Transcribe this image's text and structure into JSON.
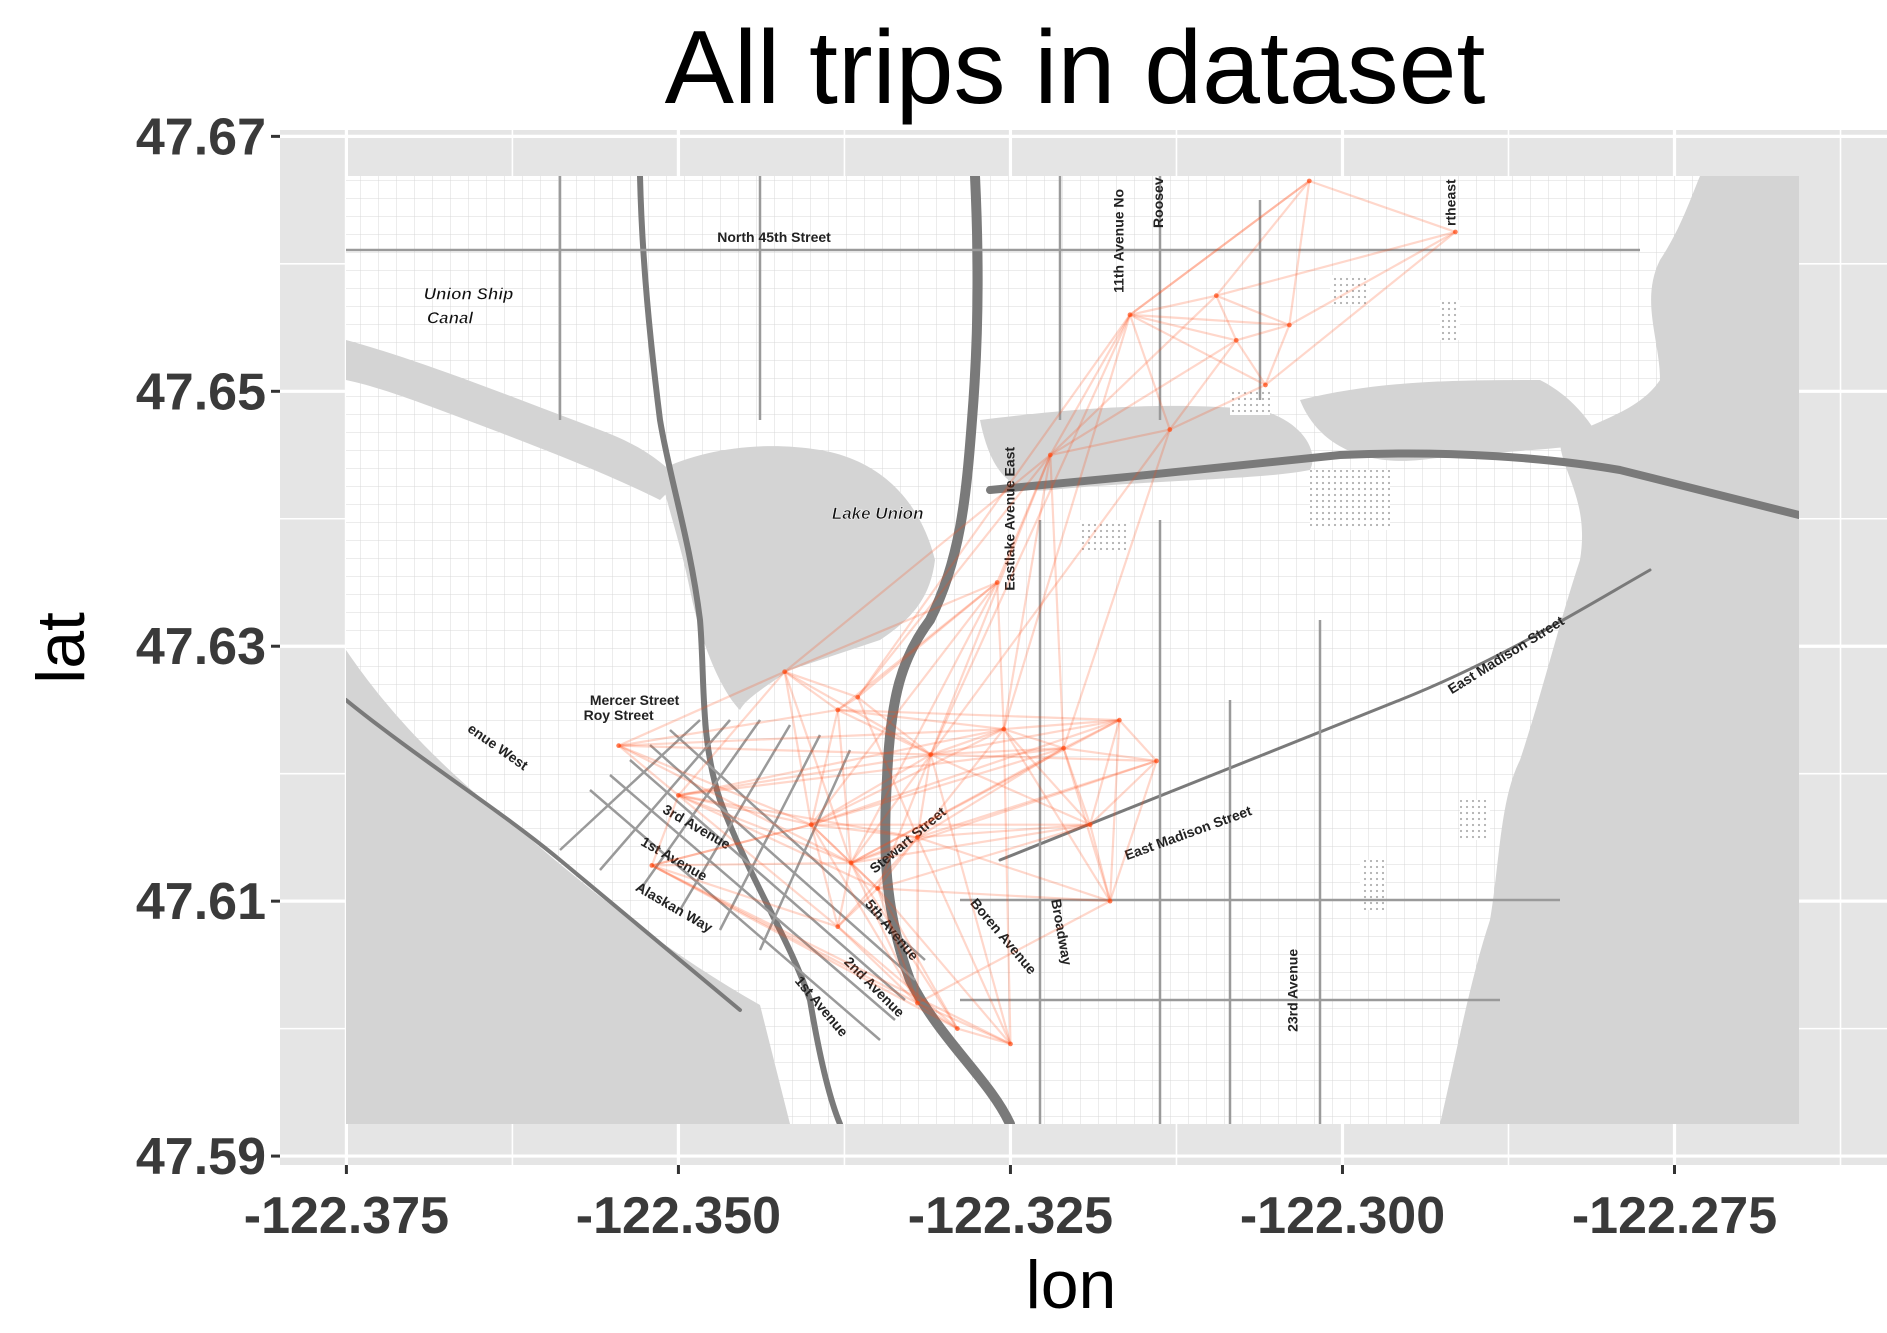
{
  "title": "All trips in dataset",
  "axes": {
    "x": {
      "label": "lon",
      "range": [
        -122.38,
        -122.259
      ],
      "ticks": [
        {
          "value": -122.375,
          "label": "-122.375"
        },
        {
          "value": -122.35,
          "label": "-122.350"
        },
        {
          "value": -122.325,
          "label": "-122.325"
        },
        {
          "value": -122.3,
          "label": "-122.300"
        },
        {
          "value": -122.275,
          "label": "-122.275"
        }
      ],
      "minor": [
        -122.3625,
        -122.3375,
        -122.3125,
        -122.2875,
        -122.2625
      ]
    },
    "y": {
      "label": "lat",
      "range": [
        47.5893,
        47.6705
      ],
      "ticks": [
        {
          "value": 47.59,
          "label": "47.59"
        },
        {
          "value": 47.61,
          "label": "47.61"
        },
        {
          "value": 47.63,
          "label": "47.63"
        },
        {
          "value": 47.65,
          "label": "47.65"
        },
        {
          "value": 47.67,
          "label": "47.67"
        }
      ],
      "minor": [
        47.6,
        47.62,
        47.64,
        47.66
      ]
    }
  },
  "panel_background": "#e5e5e5",
  "trip_color": "#ff4a12",
  "map": {
    "extent": {
      "lon": [
        -122.37,
        -122.26
      ],
      "lat": [
        47.5932,
        47.667
      ]
    },
    "water_color": "#d4d4d4",
    "land_color": "#ffffff",
    "street_labels": [
      {
        "text": "North 45th Street",
        "lon": -122.3428,
        "lat": 47.6617,
        "rotate": 0
      },
      {
        "text": "11th Avenue No",
        "lon": -122.3165,
        "lat": 47.6618,
        "rotate": -90
      },
      {
        "text": "Roosev",
        "lon": -122.3135,
        "lat": 47.6648,
        "rotate": -90
      },
      {
        "text": "rtheast",
        "lon": -122.2915,
        "lat": 47.6648,
        "rotate": -90
      },
      {
        "text": "Eastlake Avenue East",
        "lon": -122.3247,
        "lat": 47.64,
        "rotate": -90
      },
      {
        "text": "Mercer Street",
        "lon": -122.3533,
        "lat": 47.6254,
        "rotate": 0
      },
      {
        "text": "Roy Street",
        "lon": -122.3545,
        "lat": 47.6242,
        "rotate": 0
      },
      {
        "text": "enue West",
        "lon": -122.3638,
        "lat": 47.6218,
        "rotate": 35
      },
      {
        "text": "3rd Avenue",
        "lon": -122.3488,
        "lat": 47.6155,
        "rotate": 30
      },
      {
        "text": "1st Avenue",
        "lon": -122.3505,
        "lat": 47.613,
        "rotate": 30
      },
      {
        "text": "Alaskan Way",
        "lon": -122.3505,
        "lat": 47.6092,
        "rotate": 30
      },
      {
        "text": "Stewart Street",
        "lon": -122.3325,
        "lat": 47.6145,
        "rotate": -40
      },
      {
        "text": "5th Avenue",
        "lon": -122.3342,
        "lat": 47.6075,
        "rotate": 50
      },
      {
        "text": "2nd Avenue",
        "lon": -122.3355,
        "lat": 47.603,
        "rotate": 45
      },
      {
        "text": "1st Avenue",
        "lon": -122.3395,
        "lat": 47.6015,
        "rotate": 50
      },
      {
        "text": "Boren Avenue",
        "lon": -122.3258,
        "lat": 47.607,
        "rotate": 50
      },
      {
        "text": "Broadway",
        "lon": -122.3215,
        "lat": 47.6075,
        "rotate": 80
      },
      {
        "text": "East Madison Street",
        "lon": -122.3115,
        "lat": 47.615,
        "rotate": -20
      },
      {
        "text": "23rd Avenue",
        "lon": -122.3034,
        "lat": 47.603,
        "rotate": -90
      },
      {
        "text": "East Madison Street",
        "lon": -122.2875,
        "lat": 47.629,
        "rotate": -32
      }
    ],
    "place_labels": [
      {
        "text": "Union Ship",
        "lon": -122.3658,
        "lat": 47.6572
      },
      {
        "text": "Canal",
        "lon": -122.3672,
        "lat": 47.6553
      },
      {
        "text": "Lake Union",
        "lon": -122.335,
        "lat": 47.64
      }
    ]
  },
  "chart_data": {
    "type": "segments",
    "title": "All trips in dataset",
    "xlabel": "lon",
    "ylabel": "lat",
    "xlim": [
      -122.38,
      -122.259
    ],
    "ylim": [
      47.5893,
      47.6705
    ],
    "grid": true,
    "legend": "none",
    "stations": [
      {
        "id": "A",
        "lon": -122.3545,
        "lat": 47.6222
      },
      {
        "id": "B",
        "lon": -122.35,
        "lat": 47.6183
      },
      {
        "id": "C",
        "lon": -122.342,
        "lat": 47.628
      },
      {
        "id": "D",
        "lon": -122.338,
        "lat": 47.625
      },
      {
        "id": "E",
        "lon": -122.3365,
        "lat": 47.626
      },
      {
        "id": "F",
        "lon": -122.331,
        "lat": 47.6215
      },
      {
        "id": "G",
        "lon": -122.326,
        "lat": 47.635
      },
      {
        "id": "H",
        "lon": -122.3255,
        "lat": 47.6235
      },
      {
        "id": "I",
        "lon": -122.321,
        "lat": 47.622
      },
      {
        "id": "J",
        "lon": -122.3168,
        "lat": 47.6242
      },
      {
        "id": "K",
        "lon": -122.314,
        "lat": 47.621
      },
      {
        "id": "L",
        "lon": -122.319,
        "lat": 47.616
      },
      {
        "id": "M",
        "lon": -122.34,
        "lat": 47.616
      },
      {
        "id": "N",
        "lon": -122.337,
        "lat": 47.613
      },
      {
        "id": "O",
        "lon": -122.335,
        "lat": 47.611
      },
      {
        "id": "P",
        "lon": -122.332,
        "lat": 47.615
      },
      {
        "id": "Q",
        "lon": -122.338,
        "lat": 47.608
      },
      {
        "id": "R",
        "lon": -122.332,
        "lat": 47.602
      },
      {
        "id": "S",
        "lon": -122.329,
        "lat": 47.6
      },
      {
        "id": "T",
        "lon": -122.325,
        "lat": 47.5988
      },
      {
        "id": "U",
        "lon": -122.352,
        "lat": 47.6128
      },
      {
        "id": "V",
        "lon": -122.3175,
        "lat": 47.61
      },
      {
        "id": "W",
        "lon": -122.322,
        "lat": 47.645
      },
      {
        "id": "X",
        "lon": -122.316,
        "lat": 47.656
      },
      {
        "id": "Y",
        "lon": -122.3095,
        "lat": 47.6575
      },
      {
        "id": "Z",
        "lon": -122.308,
        "lat": 47.654
      },
      {
        "id": "AA",
        "lon": -122.304,
        "lat": 47.6552
      },
      {
        "id": "AB",
        "lon": -122.3025,
        "lat": 47.6665
      },
      {
        "id": "AC",
        "lon": -122.2915,
        "lat": 47.6625
      },
      {
        "id": "AD",
        "lon": -122.3058,
        "lat": 47.6505
      },
      {
        "id": "AE",
        "lon": -122.313,
        "lat": 47.647
      }
    ],
    "trips": [
      [
        "A",
        "B"
      ],
      [
        "A",
        "C"
      ],
      [
        "A",
        "D"
      ],
      [
        "A",
        "F"
      ],
      [
        "A",
        "M"
      ],
      [
        "A",
        "N"
      ],
      [
        "A",
        "H"
      ],
      [
        "B",
        "C"
      ],
      [
        "B",
        "M"
      ],
      [
        "B",
        "N"
      ],
      [
        "B",
        "O"
      ],
      [
        "B",
        "P"
      ],
      [
        "B",
        "Q"
      ],
      [
        "B",
        "F"
      ],
      [
        "B",
        "H"
      ],
      [
        "B",
        "I"
      ],
      [
        "C",
        "D"
      ],
      [
        "C",
        "E"
      ],
      [
        "C",
        "G"
      ],
      [
        "C",
        "M"
      ],
      [
        "C",
        "N"
      ],
      [
        "C",
        "F"
      ],
      [
        "C",
        "W"
      ],
      [
        "D",
        "E"
      ],
      [
        "D",
        "F"
      ],
      [
        "D",
        "G"
      ],
      [
        "D",
        "M"
      ],
      [
        "D",
        "N"
      ],
      [
        "D",
        "H"
      ],
      [
        "D",
        "J"
      ],
      [
        "E",
        "G"
      ],
      [
        "E",
        "F"
      ],
      [
        "E",
        "P"
      ],
      [
        "E",
        "W"
      ],
      [
        "E",
        "X"
      ],
      [
        "F",
        "H"
      ],
      [
        "F",
        "I"
      ],
      [
        "F",
        "M"
      ],
      [
        "F",
        "N"
      ],
      [
        "F",
        "O"
      ],
      [
        "F",
        "P"
      ],
      [
        "F",
        "J"
      ],
      [
        "F",
        "K"
      ],
      [
        "F",
        "L"
      ],
      [
        "G",
        "H"
      ],
      [
        "G",
        "W"
      ],
      [
        "G",
        "N"
      ],
      [
        "G",
        "M"
      ],
      [
        "H",
        "I"
      ],
      [
        "H",
        "J"
      ],
      [
        "H",
        "L"
      ],
      [
        "H",
        "P"
      ],
      [
        "H",
        "M"
      ],
      [
        "H",
        "V"
      ],
      [
        "I",
        "J"
      ],
      [
        "I",
        "K"
      ],
      [
        "I",
        "L"
      ],
      [
        "I",
        "M"
      ],
      [
        "I",
        "N"
      ],
      [
        "I",
        "V"
      ],
      [
        "I",
        "P"
      ],
      [
        "J",
        "K"
      ],
      [
        "J",
        "L"
      ],
      [
        "J",
        "M"
      ],
      [
        "J",
        "N"
      ],
      [
        "J",
        "V"
      ],
      [
        "K",
        "L"
      ],
      [
        "K",
        "P"
      ],
      [
        "K",
        "N"
      ],
      [
        "K",
        "V"
      ],
      [
        "L",
        "M"
      ],
      [
        "L",
        "N"
      ],
      [
        "L",
        "O"
      ],
      [
        "L",
        "V"
      ],
      [
        "L",
        "P"
      ],
      [
        "M",
        "N"
      ],
      [
        "M",
        "O"
      ],
      [
        "M",
        "P"
      ],
      [
        "M",
        "Q"
      ],
      [
        "M",
        "R"
      ],
      [
        "M",
        "U"
      ],
      [
        "N",
        "O"
      ],
      [
        "N",
        "P"
      ],
      [
        "N",
        "Q"
      ],
      [
        "N",
        "R"
      ],
      [
        "N",
        "S"
      ],
      [
        "N",
        "U"
      ],
      [
        "O",
        "P"
      ],
      [
        "O",
        "Q"
      ],
      [
        "O",
        "R"
      ],
      [
        "O",
        "S"
      ],
      [
        "O",
        "T"
      ],
      [
        "P",
        "Q"
      ],
      [
        "P",
        "R"
      ],
      [
        "P",
        "T"
      ],
      [
        "P",
        "V"
      ],
      [
        "Q",
        "R"
      ],
      [
        "Q",
        "U"
      ],
      [
        "Q",
        "S"
      ],
      [
        "R",
        "S"
      ],
      [
        "R",
        "T"
      ],
      [
        "R",
        "U"
      ],
      [
        "S",
        "T"
      ],
      [
        "S",
        "U"
      ],
      [
        "T",
        "U"
      ],
      [
        "T",
        "F"
      ],
      [
        "T",
        "H"
      ],
      [
        "U",
        "B"
      ],
      [
        "U",
        "M"
      ],
      [
        "V",
        "R"
      ],
      [
        "V",
        "O"
      ],
      [
        "W",
        "X"
      ],
      [
        "W",
        "Y"
      ],
      [
        "W",
        "Z"
      ],
      [
        "W",
        "AE"
      ],
      [
        "W",
        "F"
      ],
      [
        "W",
        "H"
      ],
      [
        "W",
        "I"
      ],
      [
        "X",
        "Y"
      ],
      [
        "X",
        "Z"
      ],
      [
        "X",
        "AA"
      ],
      [
        "X",
        "AB"
      ],
      [
        "X",
        "AD"
      ],
      [
        "X",
        "AE"
      ],
      [
        "X",
        "H"
      ],
      [
        "X",
        "F"
      ],
      [
        "Y",
        "Z"
      ],
      [
        "Y",
        "AA"
      ],
      [
        "Y",
        "AB"
      ],
      [
        "Y",
        "AC"
      ],
      [
        "Z",
        "AA"
      ],
      [
        "Z",
        "AD"
      ],
      [
        "Z",
        "AE"
      ],
      [
        "AA",
        "AB"
      ],
      [
        "AA",
        "AC"
      ],
      [
        "AA",
        "AD"
      ],
      [
        "AB",
        "AC"
      ],
      [
        "AC",
        "AD"
      ],
      [
        "AE",
        "AD"
      ],
      [
        "AE",
        "I"
      ],
      [
        "AE",
        "F"
      ],
      [
        "AB",
        "X"
      ]
    ]
  }
}
